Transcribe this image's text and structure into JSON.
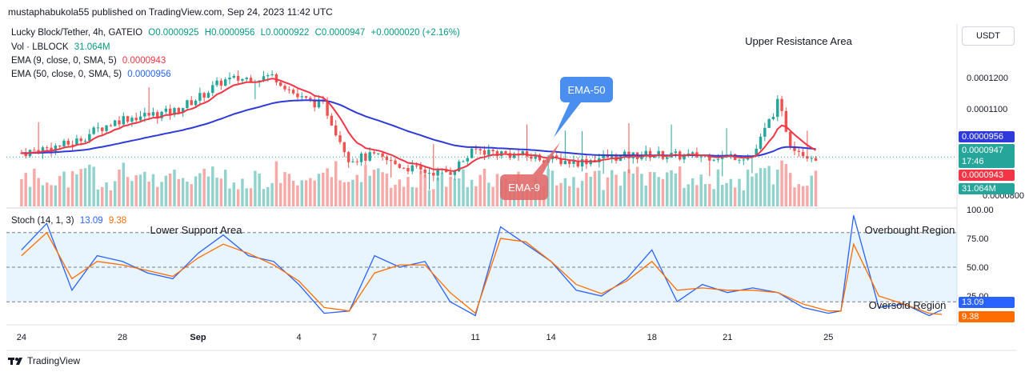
{
  "publisher": "mustaphabukola55 published on TradingView.com, Sep 24, 2023 11:42 UTC",
  "currency_button": "USDT",
  "legend": {
    "symbol": "Lucky Block/Tether, 4h, GATEIO",
    "o": "O0.0000925",
    "h": "H0.0000956",
    "l": "L0.0000922",
    "c": "C0.0000947",
    "change": "+0.0000020 (+2.16%)",
    "vol_label": "Vol · LBLOCK",
    "vol_value": "31.064M",
    "ema9_label": "EMA (9, close, 0, SMA, 5)",
    "ema9_value": "0.0000943",
    "ema50_label": "EMA (50, close, 0, SMA, 5)",
    "ema50_value": "0.0000956",
    "stoch_label": "Stoch (14, 1, 3)",
    "stoch_k": "13.09",
    "stoch_d": "9.38"
  },
  "price_tags": {
    "ema50": "0.0000956",
    "last": "0.0000947",
    "countdown": "17:46",
    "ema9": "0.0000943",
    "volume": "31.064M"
  },
  "stoch_tags": {
    "k": "13.09",
    "d": "9.38"
  },
  "annotations": {
    "upper_resistance": "Upper Resistance Area",
    "lower_support": "Lower Support Area",
    "overbought": "Overbought Region",
    "oversold": "Oversold Region",
    "ema50_callout": "EMA-50",
    "ema9_callout": "EMA-9"
  },
  "footer_brand": "TradingView",
  "colors": {
    "up": "#26a69a",
    "down": "#ef5350",
    "ema9": "#f23645",
    "ema50": "#2e3ad9",
    "stoch_k": "#2962ff",
    "stoch_d": "#ff6d00",
    "callout_blue": "#4a8ff0",
    "callout_red": "#e06a6a"
  },
  "chart_data": [
    {
      "type": "candlestick",
      "title": "Lucky Block/Tether, 4h, GATEIO",
      "x_ticks": [
        "24",
        "28",
        "Sep",
        "4",
        "7",
        "11",
        "14",
        "18",
        "21",
        "25"
      ],
      "y_ticks": [
        "0.0001200",
        "0.0001100"
      ],
      "ylim": [
        7.9e-05,
        0.000137
      ],
      "points": [
        {
          "day": 24,
          "price": 9.6e-05
        },
        {
          "day": 26,
          "price": 9.9e-05
        },
        {
          "day": 27,
          "price": 0.0001035
        },
        {
          "day": 28,
          "price": 0.000107
        },
        {
          "day": 30,
          "price": 0.000109
        },
        {
          "day": 31,
          "price": 0.0001135
        },
        {
          "day": 32,
          "price": 0.000119
        },
        {
          "day": 34,
          "price": 0.0001205
        },
        {
          "day": 35,
          "price": 0.0001135
        },
        {
          "day": 36,
          "price": 0.000111
        },
        {
          "day": 37,
          "price": 9.4e-05
        },
        {
          "day": 38,
          "price": 9.5e-05
        },
        {
          "day": 39,
          "price": 9.2e-05
        },
        {
          "day": 40,
          "price": 9e-05
        },
        {
          "day": 41,
          "price": 9e-05
        },
        {
          "day": 42,
          "price": 9.7e-05
        },
        {
          "day": 43,
          "price": 9.6e-05
        },
        {
          "day": 44,
          "price": 9.5e-05
        },
        {
          "day": 45,
          "price": 9.4e-05
        },
        {
          "day": 46,
          "price": 9.3e-05
        },
        {
          "day": 47,
          "price": 9.45e-05
        },
        {
          "day": 48,
          "price": 9.5e-05
        },
        {
          "day": 49,
          "price": 9.55e-05
        },
        {
          "day": 50,
          "price": 9.5e-05
        },
        {
          "day": 51,
          "price": 9.5e-05
        },
        {
          "day": 52,
          "price": 9.5e-05
        },
        {
          "day": 53,
          "price": 9.5e-05
        },
        {
          "day": 54,
          "price": 0.000112
        },
        {
          "day": 54.5,
          "price": 9.9e-05
        },
        {
          "day": 55,
          "price": 9.6e-05
        },
        {
          "day": 55.5,
          "price": 9.47e-05
        }
      ],
      "series": [
        {
          "name": "EMA 9",
          "value": 9.43e-05
        },
        {
          "name": "EMA 50",
          "value": 9.56e-05
        }
      ]
    },
    {
      "type": "bar",
      "title": "Vol · LBLOCK",
      "last_value": "31.064M"
    },
    {
      "type": "line",
      "title": "Stoch (14, 1, 3)",
      "y_ticks": [
        "100.00",
        "75.00",
        "50.00",
        "25.00"
      ],
      "ylim": [
        0,
        100
      ],
      "bands": {
        "upper": 80,
        "lower": 20
      },
      "series": [
        {
          "name": "%K",
          "points": [
            [
              24,
              65
            ],
            [
              25,
              88
            ],
            [
              26,
              30
            ],
            [
              27,
              60
            ],
            [
              28,
              55
            ],
            [
              29,
              45
            ],
            [
              30,
              40
            ],
            [
              31,
              62
            ],
            [
              32,
              78
            ],
            [
              33,
              60
            ],
            [
              34,
              55
            ],
            [
              35,
              35
            ],
            [
              36,
              10
            ],
            [
              37,
              12
            ],
            [
              38,
              60
            ],
            [
              39,
              50
            ],
            [
              40,
              55
            ],
            [
              41,
              20
            ],
            [
              42,
              8
            ],
            [
              43,
              85
            ],
            [
              44,
              70
            ],
            [
              45,
              55
            ],
            [
              46,
              30
            ],
            [
              47,
              25
            ],
            [
              48,
              40
            ],
            [
              49,
              65
            ],
            [
              50,
              20
            ],
            [
              51,
              35
            ],
            [
              52,
              28
            ],
            [
              53,
              32
            ],
            [
              54,
              28
            ],
            [
              55,
              15
            ],
            [
              56,
              10
            ],
            [
              56.5,
              12
            ],
            [
              57,
              95
            ],
            [
              58,
              15
            ],
            [
              59,
              18
            ],
            [
              60,
              8
            ],
            [
              60.5,
              13
            ]
          ]
        },
        {
          "name": "%D",
          "points": [
            [
              24,
              60
            ],
            [
              25,
              80
            ],
            [
              26,
              40
            ],
            [
              27,
              55
            ],
            [
              28,
              52
            ],
            [
              29,
              47
            ],
            [
              30,
              42
            ],
            [
              31,
              58
            ],
            [
              32,
              70
            ],
            [
              33,
              62
            ],
            [
              34,
              52
            ],
            [
              35,
              38
            ],
            [
              36,
              15
            ],
            [
              37,
              12
            ],
            [
              38,
              45
            ],
            [
              39,
              52
            ],
            [
              40,
              52
            ],
            [
              41,
              28
            ],
            [
              42,
              10
            ],
            [
              43,
              75
            ],
            [
              44,
              72
            ],
            [
              45,
              55
            ],
            [
              46,
              35
            ],
            [
              47,
              27
            ],
            [
              48,
              38
            ],
            [
              49,
              55
            ],
            [
              50,
              30
            ],
            [
              51,
              32
            ],
            [
              52,
              30
            ],
            [
              53,
              30
            ],
            [
              54,
              28
            ],
            [
              55,
              18
            ],
            [
              56,
              12
            ],
            [
              56.5,
              12
            ],
            [
              57,
              70
            ],
            [
              58,
              25
            ],
            [
              59,
              18
            ],
            [
              60,
              10
            ],
            [
              60.5,
              9
            ]
          ]
        }
      ]
    }
  ]
}
